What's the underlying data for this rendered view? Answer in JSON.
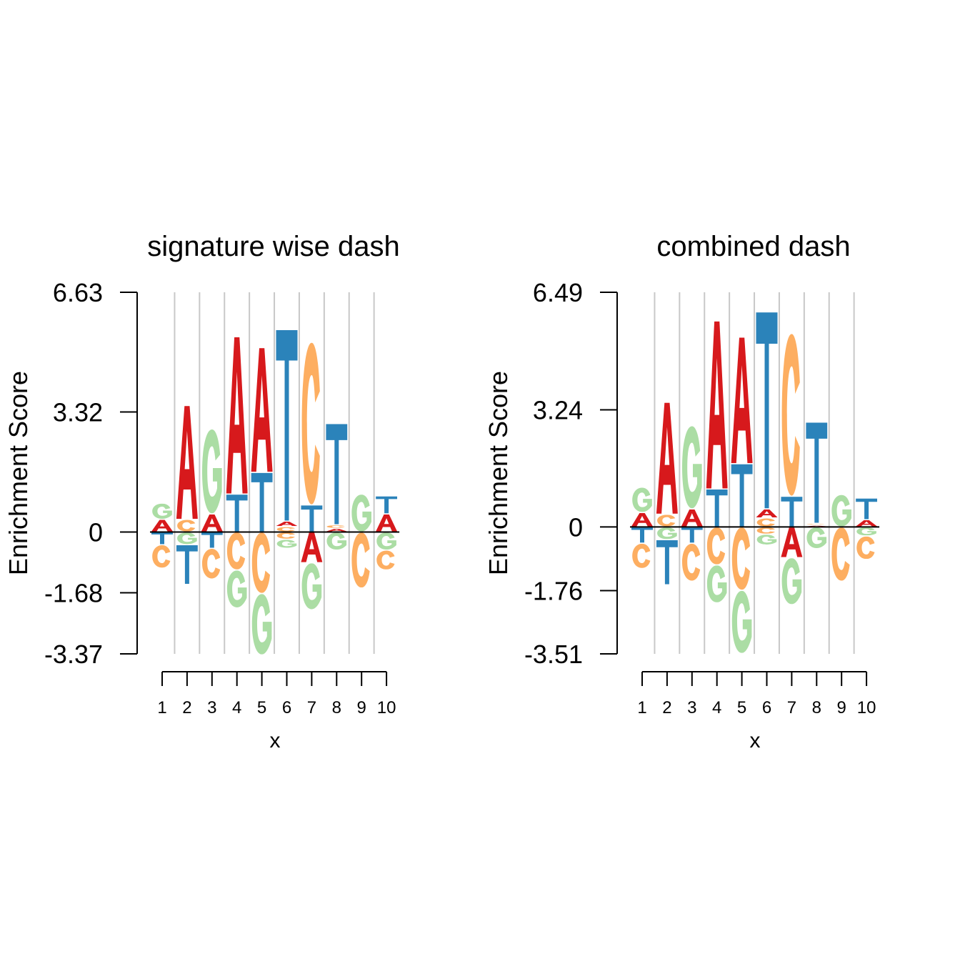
{
  "colors": {
    "A": "#d7191c",
    "C": "#fdae61",
    "G": "#abdda4",
    "T": "#2b83ba"
  },
  "chart_data": [
    {
      "type": "sequence-logo",
      "title": "signature wise dash",
      "xlabel": "x",
      "ylabel": "Enrichment Score",
      "x": [
        1,
        2,
        3,
        4,
        5,
        6,
        7,
        8,
        9,
        10
      ],
      "ylim": [
        -3.37,
        6.63
      ],
      "yticks": [
        "6.63",
        "3.32",
        "0",
        "-1.68",
        "-3.37"
      ],
      "ytick_values": [
        6.63,
        3.32,
        0,
        -1.68,
        -3.37
      ],
      "positions": [
        {
          "pos": [
            [
              "A",
              0.35
            ],
            [
              "G",
              0.45
            ]
          ],
          "neg": [
            [
              "T",
              0.35
            ],
            [
              "C",
              0.65
            ]
          ]
        },
        {
          "pos": [
            [
              "C",
              0.35
            ],
            [
              "A",
              3.15
            ]
          ],
          "neg": [
            [
              "G",
              0.35
            ],
            [
              "T",
              1.1
            ]
          ]
        },
        {
          "pos": [
            [
              "A",
              0.5
            ],
            [
              "G",
              2.35
            ]
          ],
          "neg": [
            [
              "T",
              0.45
            ],
            [
              "C",
              0.85
            ]
          ]
        },
        {
          "pos": [
            [
              "T",
              1.05
            ],
            [
              "A",
              4.35
            ]
          ],
          "neg": [
            [
              "C",
              1.05
            ],
            [
              "G",
              1.05
            ]
          ]
        },
        {
          "pos": [
            [
              "T",
              1.65
            ],
            [
              "A",
              3.45
            ]
          ],
          "neg": [
            [
              "C",
              1.7
            ],
            [
              "G",
              1.7
            ]
          ]
        },
        {
          "pos": [
            [
              "C",
              0.15
            ],
            [
              "A",
              0.15
            ],
            [
              "T",
              5.3
            ]
          ],
          "neg": [
            [
              "C",
              0.2
            ],
            [
              "G",
              0.25
            ]
          ]
        },
        {
          "pos": [
            [
              "T",
              0.75
            ],
            [
              "C",
              4.5
            ]
          ],
          "neg": [
            [
              "A",
              0.85
            ],
            [
              "G",
              1.3
            ]
          ]
        },
        {
          "pos": [
            [
              "A",
              0.1
            ],
            [
              "C",
              0.1
            ],
            [
              "T",
              2.8
            ]
          ],
          "neg": [
            [
              "G",
              0.5
            ]
          ]
        },
        {
          "pos": [
            [
              "G",
              1.05
            ]
          ],
          "neg": [
            [
              "C",
              1.55
            ]
          ]
        },
        {
          "pos": [
            [
              "A",
              0.5
            ],
            [
              "T",
              0.5
            ]
          ],
          "neg": [
            [
              "G",
              0.5
            ],
            [
              "C",
              0.55
            ]
          ]
        }
      ]
    },
    {
      "type": "sequence-logo",
      "title": "combined dash",
      "xlabel": "x",
      "ylabel": "Enrichment Score",
      "x": [
        1,
        2,
        3,
        4,
        5,
        6,
        7,
        8,
        9,
        10
      ],
      "ylim": [
        -3.51,
        6.49
      ],
      "yticks": [
        "6.49",
        "3.24",
        "0",
        "-1.76",
        "-3.51"
      ],
      "ytick_values": [
        6.49,
        3.24,
        0,
        -1.76,
        -3.51
      ],
      "positions": [
        {
          "pos": [
            [
              "A",
              0.4
            ],
            [
              "G",
              0.7
            ]
          ],
          "neg": [
            [
              "T",
              0.45
            ],
            [
              "C",
              0.7
            ]
          ]
        },
        {
          "pos": [
            [
              "C",
              0.35
            ],
            [
              "A",
              3.1
            ]
          ],
          "neg": [
            [
              "G",
              0.35
            ],
            [
              "T",
              1.25
            ]
          ]
        },
        {
          "pos": [
            [
              "A",
              0.5
            ],
            [
              "G",
              2.3
            ]
          ],
          "neg": [
            [
              "T",
              0.45
            ],
            [
              "C",
              1.05
            ]
          ]
        },
        {
          "pos": [
            [
              "T",
              1.05
            ],
            [
              "A",
              4.65
            ]
          ],
          "neg": [
            [
              "C",
              1.05
            ],
            [
              "G",
              1.05
            ]
          ]
        },
        {
          "pos": [
            [
              "T",
              1.75
            ],
            [
              "A",
              3.5
            ]
          ],
          "neg": [
            [
              "C",
              1.75
            ],
            [
              "G",
              1.75
            ]
          ]
        },
        {
          "pos": [
            [
              "C",
              0.25
            ],
            [
              "A",
              0.25
            ],
            [
              "T",
              5.45
            ]
          ],
          "neg": [
            [
              "C",
              0.2
            ],
            [
              "G",
              0.3
            ]
          ]
        },
        {
          "pos": [
            [
              "T",
              0.85
            ],
            [
              "C",
              4.5
            ]
          ],
          "neg": [
            [
              "A",
              0.85
            ],
            [
              "G",
              1.3
            ]
          ]
        },
        {
          "pos": [
            [
              "A",
              0.05
            ],
            [
              "C",
              0.05
            ],
            [
              "T",
              2.8
            ]
          ],
          "neg": [
            [
              "G",
              0.6
            ]
          ]
        },
        {
          "pos": [
            [
              "G",
              0.9
            ]
          ],
          "neg": [
            [
              "C",
              1.5
            ]
          ]
        },
        {
          "pos": [
            [
              "A",
              0.2
            ],
            [
              "T",
              0.6
            ]
          ],
          "neg": [
            [
              "G",
              0.25
            ],
            [
              "C",
              0.65
            ]
          ]
        }
      ]
    }
  ]
}
